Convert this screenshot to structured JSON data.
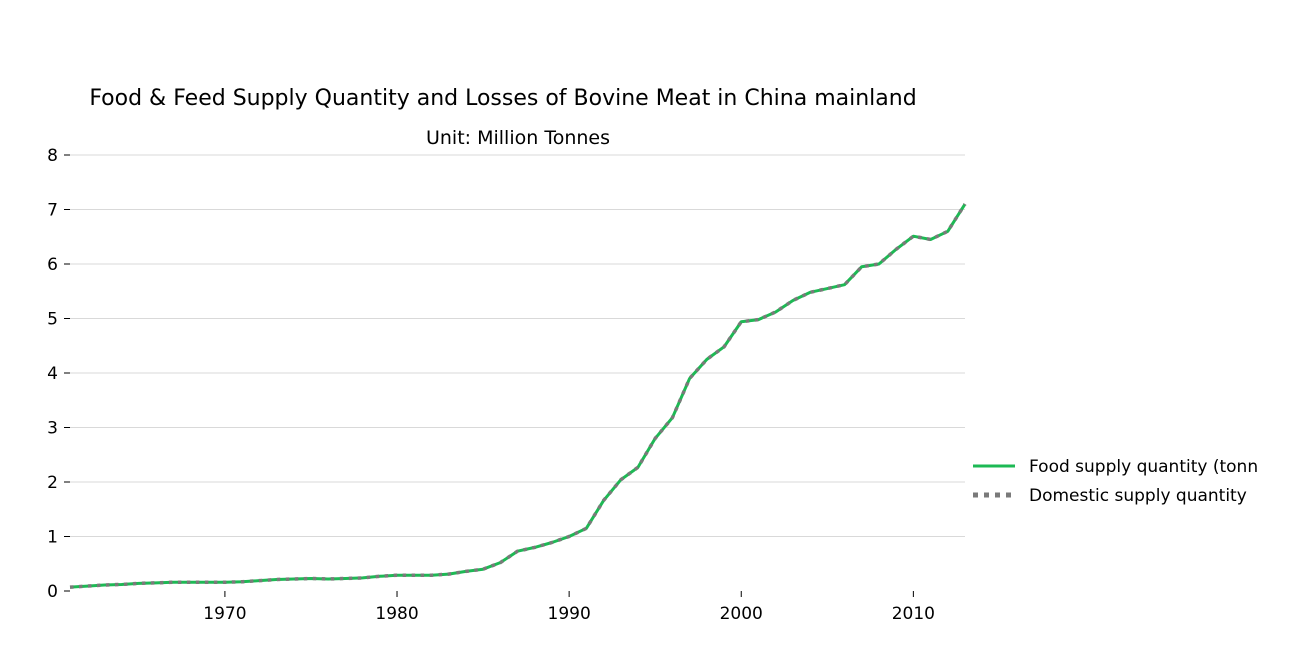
{
  "chart_data": {
    "type": "line",
    "title": "Food & Feed Supply Quantity and Losses of Bovine Meat in China mainland",
    "subtitle": "Unit: Million Tonnes",
    "xlabel": "",
    "ylabel": "",
    "xlim": [
      1961,
      2013
    ],
    "ylim": [
      0,
      8
    ],
    "x_ticks": [
      1970,
      1980,
      1990,
      2000,
      2010
    ],
    "y_ticks": [
      0,
      1,
      2,
      3,
      4,
      5,
      6,
      7,
      8
    ],
    "grid": "horizontal",
    "legend_position": "right",
    "x": [
      1961,
      1962,
      1963,
      1964,
      1965,
      1966,
      1967,
      1968,
      1969,
      1970,
      1971,
      1972,
      1973,
      1974,
      1975,
      1976,
      1977,
      1978,
      1979,
      1980,
      1981,
      1982,
      1983,
      1984,
      1985,
      1986,
      1987,
      1988,
      1989,
      1990,
      1991,
      1992,
      1993,
      1994,
      1995,
      1996,
      1997,
      1998,
      1999,
      2000,
      2001,
      2002,
      2003,
      2004,
      2005,
      2006,
      2007,
      2008,
      2009,
      2010,
      2011,
      2012,
      2013
    ],
    "series": [
      {
        "name": "Food supply quantity (tonn",
        "color": "#1db954",
        "style": "solid",
        "values": [
          0.07,
          0.09,
          0.11,
          0.12,
          0.14,
          0.15,
          0.16,
          0.16,
          0.16,
          0.16,
          0.17,
          0.19,
          0.21,
          0.22,
          0.23,
          0.22,
          0.23,
          0.24,
          0.27,
          0.29,
          0.29,
          0.29,
          0.31,
          0.36,
          0.4,
          0.52,
          0.73,
          0.8,
          0.89,
          1.0,
          1.15,
          1.66,
          2.04,
          2.27,
          2.8,
          3.18,
          3.9,
          4.25,
          4.48,
          4.94,
          4.98,
          5.12,
          5.33,
          5.48,
          5.55,
          5.62,
          5.95,
          6.0,
          6.27,
          6.51,
          6.45,
          6.6,
          7.1
        ]
      },
      {
        "name": "Domestic supply quantity",
        "color": "#7a7a7a",
        "style": "dotted",
        "values": [
          0.07,
          0.09,
          0.11,
          0.12,
          0.14,
          0.15,
          0.16,
          0.16,
          0.16,
          0.16,
          0.17,
          0.19,
          0.21,
          0.22,
          0.23,
          0.22,
          0.23,
          0.24,
          0.27,
          0.29,
          0.29,
          0.29,
          0.31,
          0.36,
          0.4,
          0.52,
          0.73,
          0.8,
          0.89,
          1.0,
          1.15,
          1.66,
          2.04,
          2.27,
          2.8,
          3.18,
          3.9,
          4.25,
          4.48,
          4.94,
          4.98,
          5.12,
          5.33,
          5.48,
          5.55,
          5.62,
          5.95,
          6.0,
          6.27,
          6.51,
          6.45,
          6.6,
          7.1
        ]
      }
    ]
  }
}
